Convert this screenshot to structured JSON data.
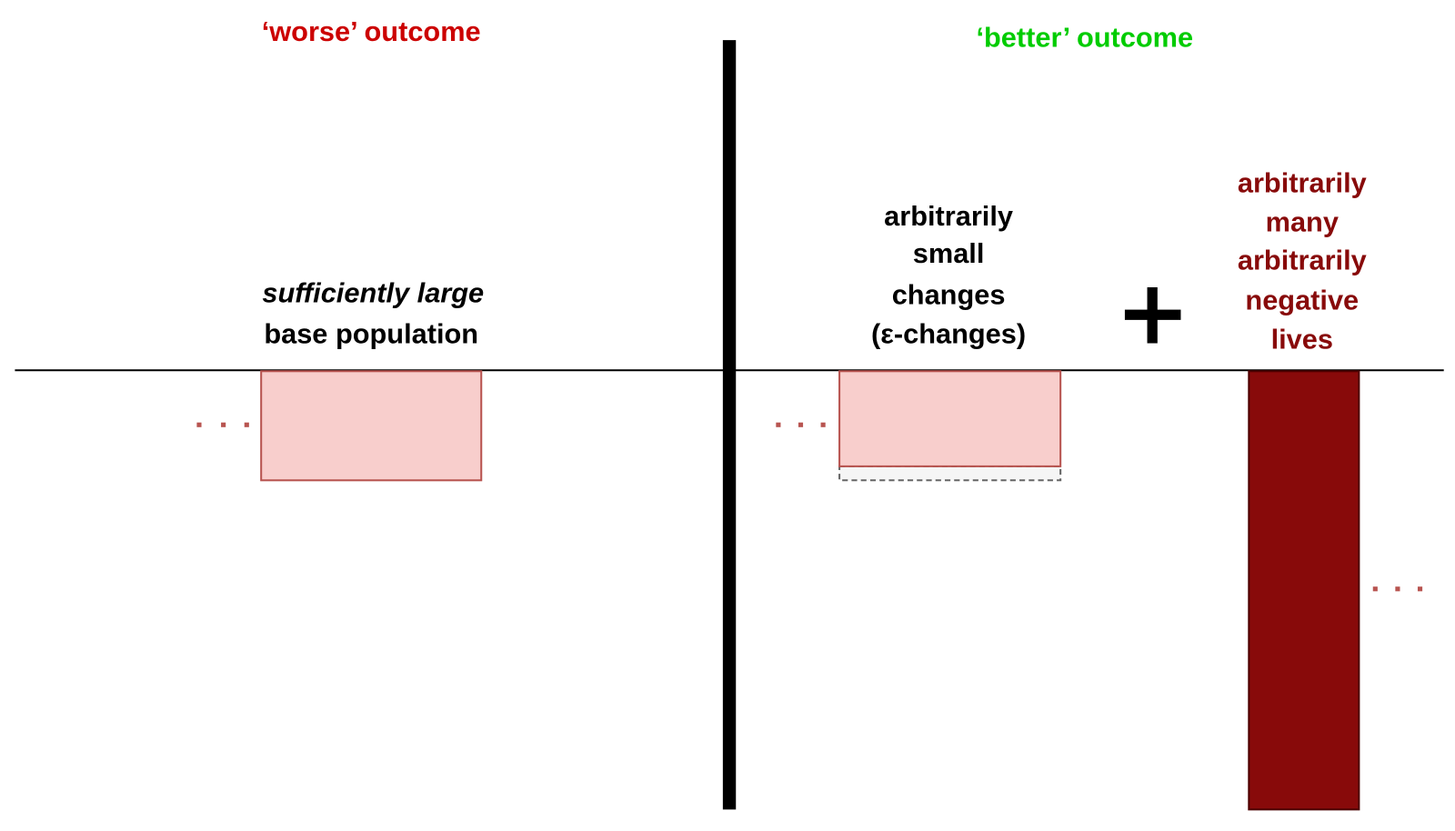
{
  "left": {
    "title": "‘worse’ outcome",
    "label_emphasis": "sufficiently large",
    "label": "base population"
  },
  "right": {
    "title": "‘better’ outcome",
    "changes_label": [
      "arbitrarily",
      "small",
      "changes",
      "(ε-changes)"
    ],
    "negative_label": [
      "arbitrarily",
      "many",
      "arbitrarily",
      "negative",
      "lives"
    ]
  }
}
